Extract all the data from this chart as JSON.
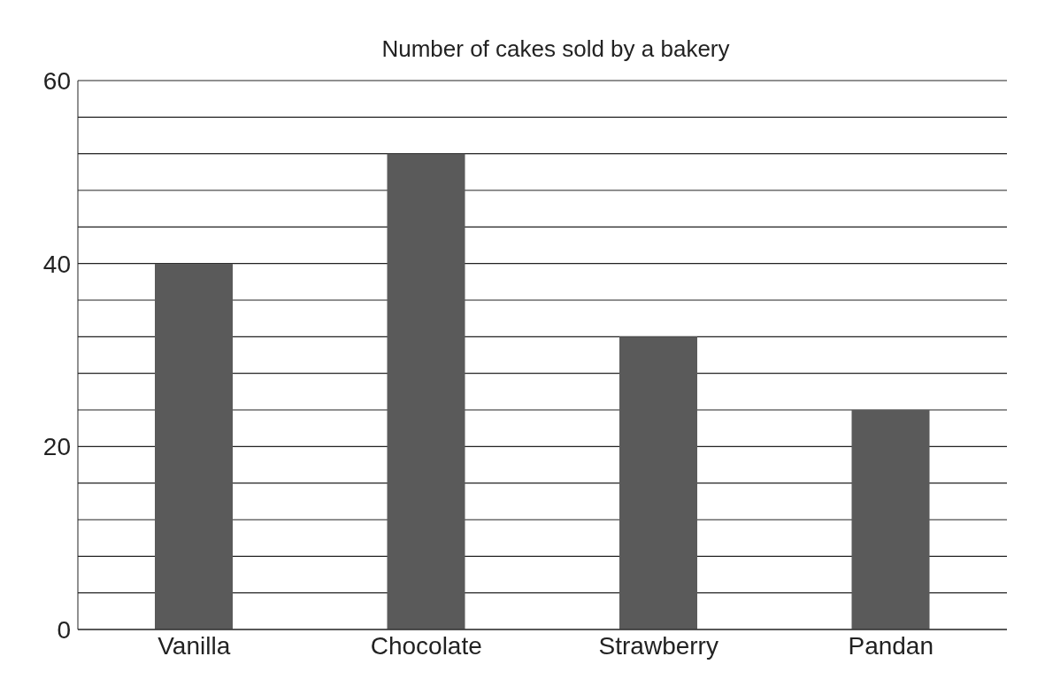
{
  "chart_data": {
    "type": "bar",
    "title": "Number of cakes sold by a bakery",
    "categories": [
      "Vanilla",
      "Chocolate",
      "Strawberry",
      "Pandan"
    ],
    "values": [
      40,
      52,
      32,
      24
    ],
    "color": "#5a5a5a",
    "ylim": [
      0,
      60
    ],
    "yticks": [
      0,
      {
        "value": 4,
        "label": null
      },
      {
        "value": 8,
        "label": null
      },
      {
        "value": 12,
        "label": null
      },
      {
        "value": 16,
        "label": null
      },
      20,
      {
        "value": 24,
        "label": null
      },
      {
        "value": 28,
        "label": null
      },
      {
        "value": 32,
        "label": null
      },
      {
        "value": 36,
        "label": null
      },
      40,
      {
        "value": 44,
        "label": null
      },
      {
        "value": 48,
        "label": null
      },
      {
        "value": 52,
        "label": null
      },
      {
        "value": 56,
        "label": null
      },
      60
    ],
    "grid": "y"
  }
}
